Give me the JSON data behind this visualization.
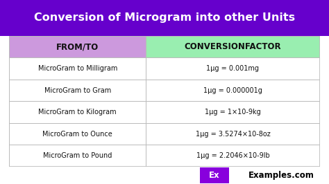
{
  "title": "Conversion of Microgram into other Units",
  "title_bg": "#6600CC",
  "title_color": "#FFFFFF",
  "header_col1": "FROM/TO",
  "header_col2": "CONVERSIONFACTOR",
  "header_col1_bg": "#CC99DD",
  "header_col2_bg": "#99EEB0",
  "rows": [
    [
      "MicroGram to Milligram",
      "1μg = 0.001mg"
    ],
    [
      "MicroGram to Gram",
      "1μg = 0.000001g"
    ],
    [
      "MicroGram to Kilogram",
      "1μg = 1×10-9kg"
    ],
    [
      "MicroGram to Ounce",
      "1μg = 3.5274×10-8oz"
    ],
    [
      "MicroGram to Pound",
      "1μg = 2.2046×10-9lb"
    ]
  ],
  "border_color": "#BBBBBB",
  "text_color": "#111111",
  "watermark_bg": "#8800DD",
  "watermark_text": "Ex",
  "watermark_site": "Examples.com",
  "fig_bg": "#FFFFFF",
  "col_split": 0.44,
  "title_fontsize": 11.5,
  "header_fontsize": 8.5,
  "row_fontsize": 7.0,
  "logo_fontsize": 8.5
}
